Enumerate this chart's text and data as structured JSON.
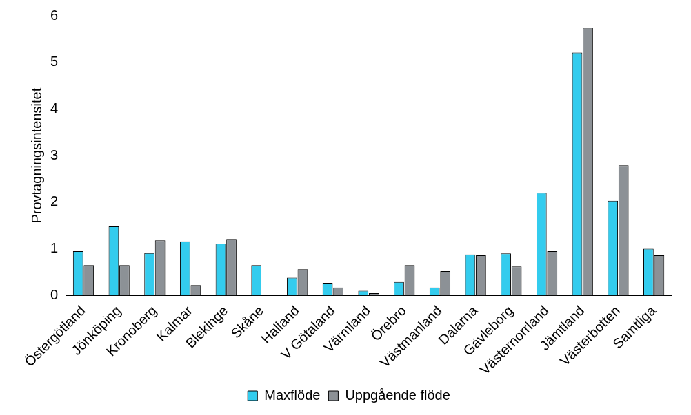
{
  "chart_data": {
    "type": "bar",
    "ylabel": "Provtagningsintensitet",
    "categories": [
      "Östergötland",
      "Jönköping",
      "Kronoberg",
      "Kalmar",
      "Blekinge",
      "Skåne",
      "Halland",
      "V Götaland",
      "Värmland",
      "Örebro",
      "Västmanland",
      "Dalarna",
      "Gävleborg",
      "Västernorrland",
      "Jämtland",
      "Västerbotten",
      "Samtliga"
    ],
    "series": [
      {
        "name": "Maxflöde",
        "color": "#33ccee",
        "values": [
          0.95,
          1.48,
          0.91,
          1.16,
          1.11,
          0.65,
          0.38,
          0.27,
          0.1,
          0.29,
          0.17,
          0.88,
          0.9,
          2.2,
          5.21,
          2.03,
          1.0
        ]
      },
      {
        "name": "Uppgående flöde",
        "color": "#8c9196",
        "values": [
          0.65,
          0.65,
          1.18,
          0.22,
          1.21,
          0,
          0.56,
          0.17,
          0.05,
          0.65,
          0.52,
          0.86,
          0.62,
          0.95,
          5.74,
          2.79,
          0.86
        ]
      }
    ],
    "ylim": [
      0,
      6
    ],
    "yticks": [
      0,
      1,
      2,
      3,
      4,
      5,
      6
    ],
    "grid": false,
    "legend": "bottom"
  }
}
